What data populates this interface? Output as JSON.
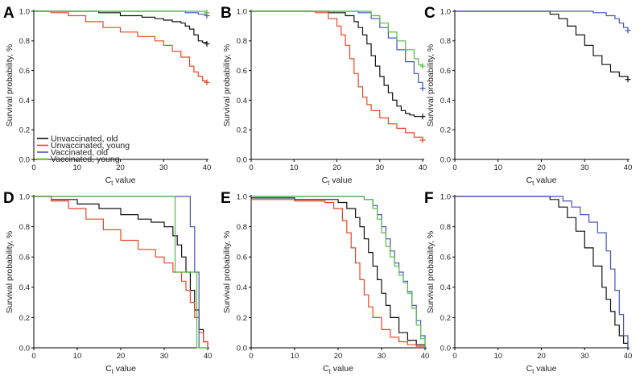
{
  "colors": {
    "Unvaccinated, old": "#111111",
    "Unvaccinated, young": "#ee4422",
    "Vaccinated, old": "#4455bb",
    "Vaccinated, young": "#55bb44"
  },
  "legend": {
    "placement": "bottom-left of panel A",
    "entries": [
      "Unvaccinated, old",
      "Unvaccinated, young",
      "Vaccinated, old",
      "Vaccinated, young"
    ]
  },
  "chart_data": [
    {
      "type": "line",
      "panel": "A",
      "xlabel": "Ct value",
      "ylabel": "Survival probability, %",
      "xlim": [
        0,
        40
      ],
      "ylim": [
        0,
        1
      ],
      "xticks": [
        "0",
        "10",
        "20",
        "30",
        "40"
      ],
      "yticks": [
        "0.0",
        "0.2",
        "0.4",
        "0.6",
        "0.8",
        "1.0"
      ],
      "censor_end": true,
      "series": [
        {
          "name": "Unvaccinated, old",
          "x": [
            0,
            5,
            15,
            20,
            25,
            28,
            30,
            32,
            34,
            35,
            36,
            37,
            38,
            39,
            40
          ],
          "y": [
            1,
            1,
            0.99,
            0.97,
            0.96,
            0.95,
            0.94,
            0.93,
            0.92,
            0.9,
            0.88,
            0.84,
            0.8,
            0.79,
            0.78
          ]
        },
        {
          "name": "Unvaccinated, young",
          "x": [
            0,
            4,
            8,
            12,
            16,
            20,
            24,
            28,
            30,
            32,
            34,
            36,
            37,
            38,
            39,
            40
          ],
          "y": [
            1,
            0.99,
            0.97,
            0.93,
            0.89,
            0.86,
            0.83,
            0.8,
            0.77,
            0.73,
            0.69,
            0.63,
            0.59,
            0.56,
            0.53,
            0.52
          ]
        },
        {
          "name": "Vaccinated, old",
          "x": [
            0,
            30,
            35,
            38,
            40
          ],
          "y": [
            1,
            1,
            0.99,
            0.98,
            0.97
          ]
        },
        {
          "name": "Vaccinated, young",
          "x": [
            0,
            35,
            40
          ],
          "y": [
            1,
            1,
            0.99
          ]
        }
      ]
    },
    {
      "type": "line",
      "panel": "B",
      "xlabel": "Ct value",
      "ylabel": "Survival probability, %",
      "xlim": [
        0,
        40
      ],
      "ylim": [
        0,
        1
      ],
      "xticks": [
        "0",
        "10",
        "20",
        "30",
        "40"
      ],
      "yticks": [
        "0.0",
        "0.2",
        "0.4",
        "0.6",
        "0.8",
        "1.0"
      ],
      "censor_end": true,
      "series": [
        {
          "name": "Unvaccinated, old",
          "x": [
            0,
            18,
            22,
            24,
            25,
            26,
            27,
            28,
            29,
            30,
            31,
            32,
            33,
            34,
            35,
            36,
            37,
            38,
            40
          ],
          "y": [
            1,
            0.99,
            0.97,
            0.93,
            0.89,
            0.84,
            0.78,
            0.7,
            0.63,
            0.56,
            0.5,
            0.45,
            0.4,
            0.36,
            0.33,
            0.31,
            0.3,
            0.29,
            0.29
          ]
        },
        {
          "name": "Unvaccinated, young",
          "x": [
            0,
            15,
            18,
            20,
            21,
            22,
            23,
            24,
            25,
            26,
            27,
            28,
            30,
            32,
            34,
            36,
            38,
            40
          ],
          "y": [
            1,
            0.99,
            0.95,
            0.9,
            0.84,
            0.77,
            0.68,
            0.58,
            0.49,
            0.42,
            0.37,
            0.33,
            0.28,
            0.24,
            0.21,
            0.18,
            0.15,
            0.13
          ]
        },
        {
          "name": "Vaccinated, old",
          "x": [
            0,
            25,
            28,
            30,
            32,
            34,
            36,
            38,
            39,
            40
          ],
          "y": [
            1,
            0.99,
            0.95,
            0.89,
            0.82,
            0.74,
            0.66,
            0.58,
            0.52,
            0.48
          ]
        },
        {
          "name": "Vaccinated, young",
          "x": [
            0,
            25,
            28,
            30,
            32,
            34,
            36,
            38,
            39,
            40
          ],
          "y": [
            1,
            1,
            0.97,
            0.92,
            0.86,
            0.8,
            0.74,
            0.68,
            0.64,
            0.63
          ]
        }
      ]
    },
    {
      "type": "line",
      "panel": "C",
      "xlabel": "Ct value",
      "ylabel": "Survival probability, %",
      "xlim": [
        0,
        40
      ],
      "ylim": [
        0,
        1
      ],
      "xticks": [
        "0",
        "10",
        "20",
        "30",
        "40"
      ],
      "yticks": [
        "0.0",
        "0.2",
        "0.4",
        "0.6",
        "0.8",
        "1.0"
      ],
      "censor_end": true,
      "series": [
        {
          "name": "Unvaccinated, old",
          "x": [
            0,
            20,
            22,
            24,
            26,
            28,
            30,
            32,
            34,
            36,
            38,
            40
          ],
          "y": [
            1,
            1,
            0.98,
            0.95,
            0.9,
            0.84,
            0.77,
            0.7,
            0.64,
            0.59,
            0.56,
            0.54
          ]
        },
        {
          "name": "Vaccinated, old",
          "x": [
            0,
            28,
            32,
            35,
            37,
            38,
            39,
            40
          ],
          "y": [
            1,
            1,
            0.99,
            0.97,
            0.95,
            0.92,
            0.89,
            0.87
          ]
        }
      ]
    },
    {
      "type": "line",
      "panel": "D",
      "xlabel": "Ct value",
      "ylabel": "Survival probability, %",
      "xlim": [
        0,
        40
      ],
      "ylim": [
        0,
        1
      ],
      "xticks": [
        "0",
        "10",
        "20",
        "30",
        "40"
      ],
      "yticks": [
        "0.0",
        "0.2",
        "0.4",
        "0.6",
        "0.8",
        "1.0"
      ],
      "censor_end": false,
      "series": [
        {
          "name": "Unvaccinated, old",
          "x": [
            0,
            4,
            10,
            15,
            20,
            24,
            27,
            30,
            32,
            33,
            34,
            35,
            36,
            37,
            38,
            39,
            40
          ],
          "y": [
            1,
            0.98,
            0.95,
            0.92,
            0.88,
            0.85,
            0.83,
            0.8,
            0.74,
            0.68,
            0.6,
            0.5,
            0.38,
            0.25,
            0.12,
            0.04,
            0
          ]
        },
        {
          "name": "Unvaccinated, young",
          "x": [
            0,
            4,
            8,
            12,
            16,
            20,
            24,
            28,
            30,
            32,
            34,
            35,
            36,
            37,
            38,
            39,
            40
          ],
          "y": [
            1,
            0.97,
            0.92,
            0.85,
            0.78,
            0.71,
            0.65,
            0.6,
            0.56,
            0.5,
            0.44,
            0.38,
            0.3,
            0.2,
            0.1,
            0.04,
            0
          ]
        },
        {
          "name": "Vaccinated, old",
          "x": [
            0,
            36,
            36,
            37,
            37,
            38,
            38,
            40
          ],
          "y": [
            1,
            1,
            0.8,
            0.8,
            0.5,
            0.5,
            0,
            0
          ]
        },
        {
          "name": "Vaccinated, young",
          "x": [
            0,
            32.5,
            32.5,
            37.5,
            37.5,
            40
          ],
          "y": [
            1,
            1,
            0.5,
            0.5,
            0,
            0
          ]
        }
      ]
    },
    {
      "type": "line",
      "panel": "E",
      "xlabel": "Ct value",
      "ylabel": "Survival probability, %",
      "xlim": [
        0,
        40
      ],
      "ylim": [
        0,
        1
      ],
      "xticks": [
        "0",
        "10",
        "20",
        "30",
        "40"
      ],
      "yticks": [
        "0.0",
        "0.2",
        "0.4",
        "0.6",
        "0.8",
        "1.0"
      ],
      "censor_end": false,
      "series": [
        {
          "name": "Unvaccinated, old",
          "x": [
            0,
            10,
            20,
            22,
            24,
            25,
            26,
            27,
            28,
            29,
            30,
            31,
            32,
            34,
            36,
            38,
            40
          ],
          "y": [
            0.99,
            0.98,
            0.96,
            0.92,
            0.86,
            0.8,
            0.72,
            0.63,
            0.54,
            0.45,
            0.36,
            0.28,
            0.2,
            0.1,
            0.05,
            0.02,
            0
          ]
        },
        {
          "name": "Unvaccinated, young",
          "x": [
            0,
            10,
            17,
            19,
            21,
            22,
            23,
            24,
            25,
            26,
            27,
            28,
            30,
            32,
            34,
            36,
            38,
            40
          ],
          "y": [
            0.98,
            0.97,
            0.96,
            0.92,
            0.84,
            0.76,
            0.66,
            0.56,
            0.45,
            0.35,
            0.27,
            0.2,
            0.12,
            0.07,
            0.04,
            0.02,
            0.01,
            0
          ]
        },
        {
          "name": "Vaccinated, old",
          "x": [
            0,
            20,
            26,
            28,
            29,
            30,
            31,
            32,
            33,
            34,
            35,
            36,
            37,
            38,
            39,
            40
          ],
          "y": [
            1,
            1,
            0.98,
            0.94,
            0.88,
            0.8,
            0.72,
            0.64,
            0.56,
            0.5,
            0.44,
            0.37,
            0.28,
            0.18,
            0.08,
            0
          ]
        },
        {
          "name": "Vaccinated, young",
          "x": [
            0,
            20,
            26,
            28,
            29,
            30,
            31,
            32,
            33,
            34,
            35,
            36,
            37,
            38,
            39,
            40
          ],
          "y": [
            1,
            1,
            0.98,
            0.92,
            0.85,
            0.76,
            0.67,
            0.6,
            0.54,
            0.48,
            0.43,
            0.36,
            0.26,
            0.15,
            0.06,
            0
          ]
        }
      ]
    },
    {
      "type": "line",
      "panel": "F",
      "xlabel": "Ct value",
      "ylabel": "Survival probability, %",
      "xlim": [
        0,
        40
      ],
      "ylim": [
        0,
        1
      ],
      "xticks": [
        "0",
        "10",
        "20",
        "30",
        "40"
      ],
      "yticks": [
        "0.0",
        "0.2",
        "0.4",
        "0.6",
        "0.8",
        "1.0"
      ],
      "censor_end": false,
      "series": [
        {
          "name": "Unvaccinated, old",
          "x": [
            0,
            18,
            22,
            24,
            26,
            28,
            30,
            32,
            34,
            35,
            36,
            37,
            38,
            39,
            40
          ],
          "y": [
            1,
            1,
            0.98,
            0.93,
            0.86,
            0.77,
            0.66,
            0.54,
            0.4,
            0.32,
            0.24,
            0.15,
            0.08,
            0.03,
            0
          ]
        },
        {
          "name": "Vaccinated, old",
          "x": [
            0,
            22,
            25,
            27,
            29,
            31,
            33,
            35,
            36,
            37,
            38,
            39,
            40
          ],
          "y": [
            1,
            1,
            0.97,
            0.93,
            0.88,
            0.83,
            0.76,
            0.64,
            0.52,
            0.38,
            0.22,
            0.08,
            0
          ]
        }
      ]
    }
  ]
}
